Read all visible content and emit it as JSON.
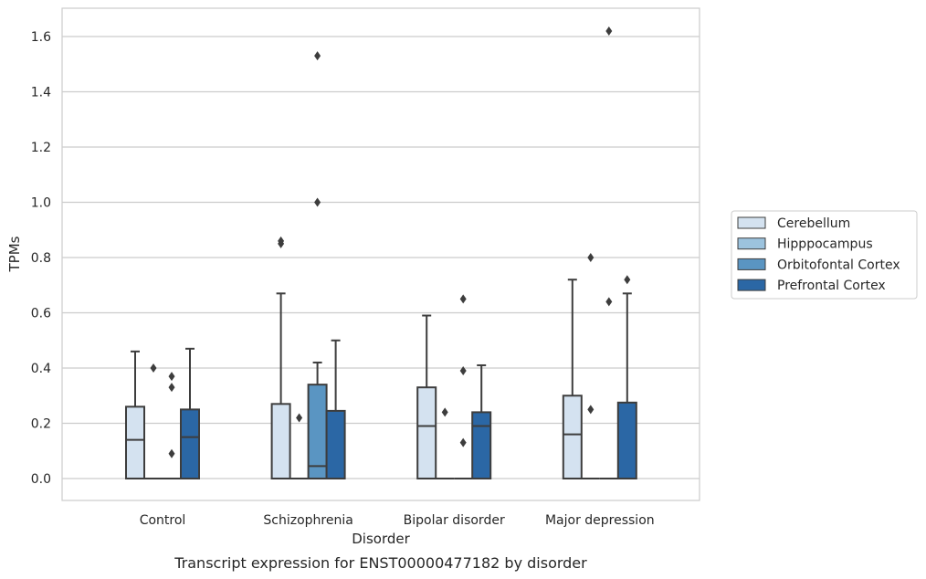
{
  "chart_data": {
    "type": "box",
    "title": "",
    "caption": "Transcript expression for ENST00000477182 by disorder",
    "xlabel": "Disorder",
    "ylabel": "TPMs",
    "ylim": [
      -0.08,
      1.7
    ],
    "yticks": [
      "0.0",
      "0.2",
      "0.4",
      "0.6",
      "0.8",
      "1.0",
      "1.2",
      "1.4",
      "1.6"
    ],
    "grid": true,
    "legend_position": "right",
    "categories": [
      "Control",
      "Schizophrenia",
      "Bipolar disorder",
      "Major depression"
    ],
    "series": [
      {
        "name": "Cerebellum",
        "color": "#d4e2f0",
        "boxes": [
          {
            "q1": 0.0,
            "median": 0.14,
            "q3": 0.26,
            "whisker_low": 0.0,
            "whisker_high": 0.46,
            "outliers": []
          },
          {
            "q1": 0.0,
            "median": 0.0,
            "q3": 0.27,
            "whisker_low": 0.0,
            "whisker_high": 0.67,
            "outliers": [
              0.85,
              0.86
            ]
          },
          {
            "q1": 0.0,
            "median": 0.19,
            "q3": 0.33,
            "whisker_low": 0.0,
            "whisker_high": 0.59,
            "outliers": []
          },
          {
            "q1": 0.0,
            "median": 0.16,
            "q3": 0.3,
            "whisker_low": 0.0,
            "whisker_high": 0.72,
            "outliers": []
          }
        ]
      },
      {
        "name": "Hipppocampus",
        "color": "#9cc3de",
        "boxes": [
          {
            "q1": 0.0,
            "median": 0.0,
            "q3": 0.0,
            "whisker_low": 0.0,
            "whisker_high": 0.0,
            "outliers": [
              0.4
            ]
          },
          {
            "q1": 0.0,
            "median": 0.0,
            "q3": 0.0,
            "whisker_low": 0.0,
            "whisker_high": 0.0,
            "outliers": [
              0.22
            ]
          },
          {
            "q1": 0.0,
            "median": 0.0,
            "q3": 0.0,
            "whisker_low": 0.0,
            "whisker_high": 0.0,
            "outliers": [
              0.24
            ]
          },
          {
            "q1": 0.0,
            "median": 0.0,
            "q3": 0.0,
            "whisker_low": 0.0,
            "whisker_high": 0.0,
            "outliers": [
              0.8,
              0.25
            ]
          }
        ]
      },
      {
        "name": "Orbitofontal Cortex",
        "color": "#5a95c2",
        "boxes": [
          {
            "q1": 0.0,
            "median": 0.0,
            "q3": 0.0,
            "whisker_low": 0.0,
            "whisker_high": 0.0,
            "outliers": [
              0.37,
              0.33,
              0.09
            ]
          },
          {
            "q1": 0.0,
            "median": 0.045,
            "q3": 0.34,
            "whisker_low": 0.0,
            "whisker_high": 0.42,
            "outliers": [
              1.53,
              1.0
            ]
          },
          {
            "q1": 0.0,
            "median": 0.0,
            "q3": 0.0,
            "whisker_low": 0.0,
            "whisker_high": 0.0,
            "outliers": [
              0.65,
              0.39,
              0.13
            ]
          },
          {
            "q1": 0.0,
            "median": 0.0,
            "q3": 0.0,
            "whisker_low": 0.0,
            "whisker_high": 0.0,
            "outliers": [
              1.62,
              0.64
            ]
          }
        ]
      },
      {
        "name": "Prefrontal Cortex",
        "color": "#2b67a5",
        "boxes": [
          {
            "q1": 0.0,
            "median": 0.15,
            "q3": 0.25,
            "whisker_low": 0.0,
            "whisker_high": 0.47,
            "outliers": []
          },
          {
            "q1": 0.0,
            "median": 0.0,
            "q3": 0.245,
            "whisker_low": 0.0,
            "whisker_high": 0.5,
            "outliers": []
          },
          {
            "q1": 0.0,
            "median": 0.19,
            "q3": 0.24,
            "whisker_low": 0.0,
            "whisker_high": 0.41,
            "outliers": []
          },
          {
            "q1": 0.0,
            "median": 0.0,
            "q3": 0.275,
            "whisker_low": 0.0,
            "whisker_high": 0.67,
            "outliers": [
              0.72
            ]
          }
        ]
      }
    ]
  }
}
